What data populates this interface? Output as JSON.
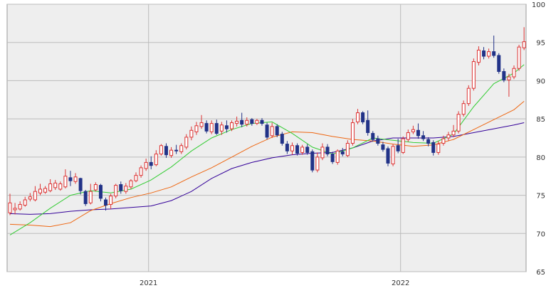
{
  "chart_data": {
    "type": "candlestick",
    "title": "",
    "xlabel": "",
    "ylabel": "",
    "ylim": [
      65,
      100
    ],
    "y_ticks": [
      65,
      70,
      75,
      80,
      85,
      90,
      95,
      100
    ],
    "x_tick_labels": [
      "2021",
      "2022"
    ],
    "x_tick_positions": [
      27.5,
      77.5
    ],
    "grid": true,
    "background": "#eeeeee",
    "colors": {
      "up": "#dd3333",
      "down": "#223388",
      "ma_short": "#33cc33",
      "ma_mid": "#ee6611",
      "ma_long": "#330099",
      "grid": "#bbbbbb"
    },
    "candles": [
      [
        72.7,
        74.0,
        72.4,
        75.2
      ],
      [
        73.1,
        73.3,
        72.5,
        74.0
      ],
      [
        73.2,
        73.8,
        73.0,
        74.2
      ],
      [
        73.7,
        74.4,
        73.5,
        74.8
      ],
      [
        74.5,
        74.8,
        74.2,
        75.3
      ],
      [
        74.4,
        75.5,
        74.2,
        76.2
      ],
      [
        75.3,
        75.8,
        75.0,
        76.5
      ],
      [
        75.4,
        75.9,
        75.2,
        76.2
      ],
      [
        75.6,
        76.5,
        75.4,
        77.1
      ],
      [
        76.0,
        76.6,
        75.7,
        77.0
      ],
      [
        75.8,
        76.5,
        75.6,
        76.8
      ],
      [
        76.1,
        77.5,
        75.9,
        78.4
      ],
      [
        77.3,
        76.9,
        76.2,
        78.2
      ],
      [
        76.8,
        77.4,
        76.5,
        77.9
      ],
      [
        77.2,
        75.6,
        75.1,
        77.3
      ],
      [
        75.5,
        73.9,
        73.6,
        75.7
      ],
      [
        74.0,
        75.5,
        73.8,
        76.5
      ],
      [
        75.7,
        76.4,
        75.5,
        76.7
      ],
      [
        76.3,
        74.6,
        74.2,
        76.5
      ],
      [
        74.4,
        73.7,
        73.0,
        74.7
      ],
      [
        73.8,
        74.9,
        73.2,
        75.2
      ],
      [
        74.9,
        76.3,
        74.6,
        76.5
      ],
      [
        76.4,
        75.6,
        75.2,
        76.8
      ],
      [
        75.5,
        76.2,
        75.2,
        76.6
      ],
      [
        76.1,
        76.9,
        75.8,
        77.1
      ],
      [
        76.9,
        77.6,
        76.7,
        78.0
      ],
      [
        77.6,
        78.6,
        77.3,
        78.9
      ],
      [
        78.5,
        79.3,
        78.2,
        79.8
      ],
      [
        79.3,
        78.9,
        78.4,
        80.1
      ],
      [
        79.0,
        80.4,
        78.8,
        80.9
      ],
      [
        80.4,
        81.5,
        80.2,
        81.7
      ],
      [
        81.4,
        80.3,
        79.9,
        81.8
      ],
      [
        80.2,
        80.9,
        79.9,
        81.3
      ],
      [
        80.9,
        80.8,
        80.4,
        81.6
      ],
      [
        80.7,
        81.5,
        80.4,
        81.8
      ],
      [
        81.3,
        82.6,
        81.0,
        83.0
      ],
      [
        82.6,
        83.5,
        82.2,
        84.0
      ],
      [
        83.3,
        84.1,
        82.9,
        84.6
      ],
      [
        84.0,
        84.5,
        83.7,
        85.5
      ],
      [
        84.4,
        83.4,
        83.1,
        84.8
      ],
      [
        83.3,
        84.4,
        83.0,
        84.8
      ],
      [
        84.4,
        83.1,
        82.9,
        84.9
      ],
      [
        83.4,
        84.2,
        82.9,
        84.6
      ],
      [
        84.1,
        83.7,
        83.2,
        84.8
      ],
      [
        83.7,
        84.5,
        83.4,
        84.8
      ],
      [
        84.4,
        84.7,
        84.0,
        85.3
      ],
      [
        84.8,
        84.3,
        83.9,
        85.8
      ],
      [
        84.3,
        84.8,
        84.0,
        85.2
      ],
      [
        84.9,
        84.4,
        84.1,
        85.1
      ],
      [
        84.4,
        84.8,
        84.2,
        85.0
      ],
      [
        84.8,
        84.4,
        84.1,
        85.1
      ],
      [
        84.2,
        82.6,
        82.3,
        84.5
      ],
      [
        82.8,
        84.0,
        82.5,
        84.5
      ],
      [
        84.0,
        82.9,
        82.6,
        84.3
      ],
      [
        83.0,
        81.8,
        81.5,
        83.3
      ],
      [
        81.7,
        80.8,
        80.4,
        82.1
      ],
      [
        80.8,
        81.5,
        80.3,
        81.9
      ],
      [
        81.5,
        80.5,
        80.2,
        81.8
      ],
      [
        80.6,
        81.3,
        80.3,
        81.6
      ],
      [
        81.3,
        80.6,
        80.3,
        81.7
      ],
      [
        80.7,
        78.3,
        78.0,
        81.0
      ],
      [
        78.3,
        80.0,
        78.0,
        80.6
      ],
      [
        79.9,
        81.3,
        79.6,
        81.8
      ],
      [
        81.3,
        80.4,
        80.1,
        81.7
      ],
      [
        80.4,
        79.4,
        79.1,
        80.7
      ],
      [
        79.3,
        80.8,
        79.0,
        81.0
      ],
      [
        80.7,
        80.4,
        80.1,
        81.2
      ],
      [
        80.2,
        81.8,
        80.0,
        82.2
      ],
      [
        81.8,
        84.5,
        81.5,
        85.0
      ],
      [
        84.6,
        85.8,
        84.3,
        86.3
      ],
      [
        85.8,
        84.6,
        84.3,
        86.0
      ],
      [
        84.8,
        83.2,
        82.8,
        86.1
      ],
      [
        83.1,
        82.3,
        82.0,
        83.4
      ],
      [
        82.4,
        81.8,
        81.5,
        82.8
      ],
      [
        81.6,
        81.0,
        80.7,
        82.0
      ],
      [
        81.1,
        79.2,
        78.8,
        81.4
      ],
      [
        79.1,
        81.4,
        78.8,
        81.7
      ],
      [
        81.5,
        80.8,
        80.5,
        82.4
      ],
      [
        80.6,
        82.4,
        80.4,
        82.7
      ],
      [
        82.3,
        83.2,
        82.0,
        83.6
      ],
      [
        83.3,
        83.6,
        83.0,
        84.1
      ],
      [
        83.5,
        82.8,
        82.4,
        84.4
      ],
      [
        82.8,
        82.4,
        82.1,
        83.4
      ],
      [
        82.3,
        81.8,
        81.4,
        82.6
      ],
      [
        81.9,
        80.6,
        80.2,
        82.2
      ],
      [
        80.6,
        81.7,
        80.3,
        82.1
      ],
      [
        81.8,
        82.4,
        81.5,
        82.8
      ],
      [
        82.5,
        82.9,
        82.1,
        83.3
      ],
      [
        82.9,
        83.4,
        82.6,
        84.2
      ],
      [
        83.4,
        85.6,
        83.1,
        86.0
      ],
      [
        85.6,
        87.0,
        85.3,
        87.4
      ],
      [
        87.0,
        89.0,
        86.7,
        89.4
      ],
      [
        89.0,
        92.5,
        88.7,
        92.9
      ],
      [
        92.4,
        94.0,
        92.0,
        94.5
      ],
      [
        93.9,
        93.2,
        92.8,
        94.4
      ],
      [
        93.2,
        93.8,
        92.9,
        94.2
      ],
      [
        93.8,
        93.3,
        93.0,
        95.9
      ],
      [
        93.3,
        91.2,
        90.9,
        93.6
      ],
      [
        91.2,
        90.1,
        89.8,
        91.6
      ],
      [
        90.1,
        90.5,
        87.9,
        90.9
      ],
      [
        90.5,
        91.6,
        90.2,
        92.0
      ],
      [
        91.6,
        94.4,
        91.3,
        94.7
      ],
      [
        94.3,
        95.1,
        94.0,
        97.0
      ]
    ],
    "ma_short": [
      [
        0,
        69.8
      ],
      [
        4,
        71.4
      ],
      [
        8,
        73.3
      ],
      [
        12,
        75.0
      ],
      [
        16,
        75.6
      ],
      [
        20,
        75.3
      ],
      [
        24,
        75.8
      ],
      [
        28,
        77.0
      ],
      [
        32,
        78.7
      ],
      [
        36,
        80.8
      ],
      [
        40,
        82.5
      ],
      [
        44,
        83.6
      ],
      [
        48,
        84.4
      ],
      [
        52,
        84.6
      ],
      [
        56,
        83.1
      ],
      [
        60,
        81.3
      ],
      [
        64,
        80.4
      ],
      [
        68,
        81.2
      ],
      [
        72,
        82.5
      ],
      [
        76,
        82.2
      ],
      [
        80,
        81.9
      ],
      [
        84,
        81.8
      ],
      [
        88,
        83.0
      ],
      [
        92,
        86.6
      ],
      [
        96,
        89.6
      ],
      [
        100,
        91.0
      ],
      [
        102,
        92.1
      ]
    ],
    "ma_mid": [
      [
        0,
        71.2
      ],
      [
        4,
        71.1
      ],
      [
        8,
        70.9
      ],
      [
        12,
        71.4
      ],
      [
        16,
        73.0
      ],
      [
        20,
        73.9
      ],
      [
        24,
        74.7
      ],
      [
        28,
        75.3
      ],
      [
        32,
        76.1
      ],
      [
        36,
        77.4
      ],
      [
        40,
        78.6
      ],
      [
        44,
        80.0
      ],
      [
        48,
        81.4
      ],
      [
        52,
        82.6
      ],
      [
        56,
        83.3
      ],
      [
        60,
        83.2
      ],
      [
        64,
        82.7
      ],
      [
        68,
        82.3
      ],
      [
        72,
        82.1
      ],
      [
        76,
        81.7
      ],
      [
        80,
        81.4
      ],
      [
        84,
        81.6
      ],
      [
        88,
        82.3
      ],
      [
        92,
        83.6
      ],
      [
        96,
        84.9
      ],
      [
        100,
        86.2
      ],
      [
        102,
        87.3
      ]
    ],
    "ma_long": [
      [
        0,
        72.6
      ],
      [
        4,
        72.5
      ],
      [
        8,
        72.6
      ],
      [
        12,
        72.9
      ],
      [
        16,
        73.1
      ],
      [
        20,
        73.2
      ],
      [
        24,
        73.4
      ],
      [
        28,
        73.6
      ],
      [
        32,
        74.3
      ],
      [
        36,
        75.5
      ],
      [
        40,
        77.2
      ],
      [
        44,
        78.5
      ],
      [
        48,
        79.3
      ],
      [
        52,
        79.9
      ],
      [
        56,
        80.3
      ],
      [
        60,
        80.5
      ],
      [
        64,
        80.6
      ],
      [
        68,
        81.2
      ],
      [
        72,
        82.1
      ],
      [
        76,
        82.5
      ],
      [
        80,
        82.5
      ],
      [
        84,
        82.5
      ],
      [
        88,
        82.7
      ],
      [
        92,
        83.2
      ],
      [
        96,
        83.7
      ],
      [
        100,
        84.2
      ],
      [
        102,
        84.5
      ]
    ]
  }
}
